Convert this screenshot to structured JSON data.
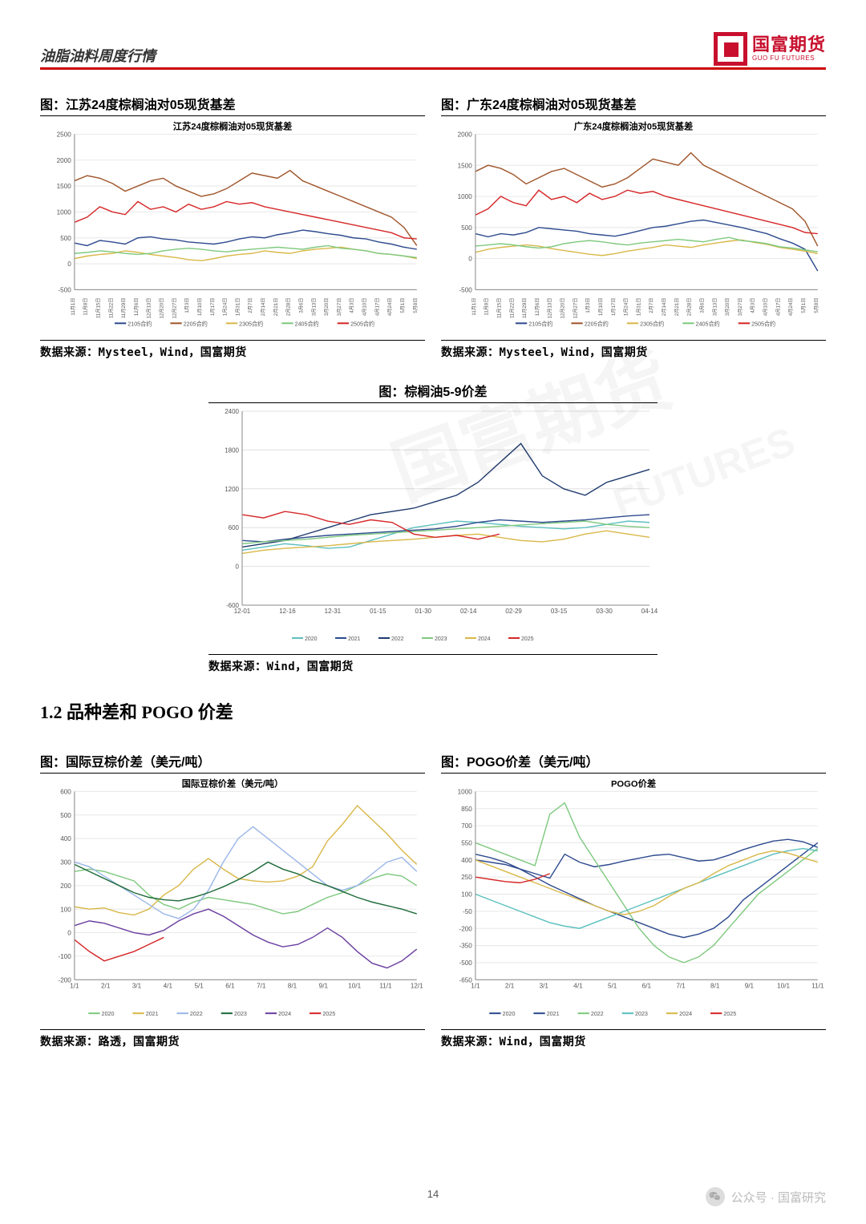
{
  "header": {
    "title": "油脂油料周度行情",
    "logo_cn": "国富期货",
    "logo_en": "GUO FU FUTURES"
  },
  "page_number": "14",
  "footer": {
    "label": "公众号 · 国富研究"
  },
  "watermarks": [
    "国富期货",
    "FUTURES"
  ],
  "section_heading": "1.2 品种差和 POGO 价差",
  "charts": {
    "jiangsu": {
      "title": "图：江苏24度棕榈油对05现货基差",
      "inner_title": "江苏24度棕榈油对05现货基差",
      "source": "数据来源：Mysteel，Wind，国富期货",
      "type": "line",
      "ylim": [
        -500,
        2500
      ],
      "ytick_step": 500,
      "x_labels": [
        "11月1日",
        "11月8日",
        "11月15日",
        "11月22日",
        "11月29日",
        "12月6日",
        "12月13日",
        "12月20日",
        "12月27日",
        "1月3日",
        "1月10日",
        "1月17日",
        "1月24日",
        "1月31日",
        "2月7日",
        "2月14日",
        "2月21日",
        "2月28日",
        "3月6日",
        "3月13日",
        "3月20日",
        "3月27日",
        "4月3日",
        "4月10日",
        "4月17日",
        "4月24日",
        "5月1日",
        "5月8日"
      ],
      "legend": [
        "2105合约",
        "2205合约",
        "2305合约",
        "2405合约",
        "2505合约"
      ],
      "colors": [
        "#2e4b8f",
        "#a0562c",
        "#d9b84a",
        "#7fc97f",
        "#d62728"
      ],
      "grid_color": "#e8e8e8",
      "series": {
        "2105": [
          400,
          350,
          450,
          420,
          380,
          500,
          520,
          480,
          460,
          420,
          400,
          380,
          420,
          480,
          520,
          500,
          560,
          600,
          650,
          620,
          580,
          550,
          500,
          480,
          420,
          380,
          320,
          280
        ],
        "2205": [
          1600,
          1700,
          1650,
          1550,
          1400,
          1500,
          1600,
          1650,
          1500,
          1400,
          1300,
          1350,
          1450,
          1600,
          1750,
          1700,
          1650,
          1800,
          1600,
          1500,
          1400,
          1300,
          1200,
          1100,
          1000,
          900,
          700,
          350
        ],
        "2305": [
          100,
          150,
          180,
          200,
          250,
          220,
          180,
          150,
          120,
          80,
          60,
          100,
          150,
          180,
          200,
          250,
          220,
          200,
          250,
          280,
          300,
          320,
          280,
          250,
          200,
          180,
          150,
          100
        ],
        "2405": [
          200,
          220,
          250,
          230,
          200,
          180,
          200,
          250,
          280,
          300,
          280,
          250,
          230,
          260,
          280,
          300,
          320,
          300,
          280,
          320,
          350,
          300,
          280,
          250,
          200,
          180,
          150,
          120
        ],
        "2505": [
          800,
          900,
          1100,
          1000,
          950,
          1200,
          1050,
          1100,
          1000,
          1150,
          1050,
          1100,
          1200,
          1150,
          1180,
          1100,
          1050,
          1000,
          950,
          900,
          850,
          800,
          750,
          700,
          650,
          600,
          500,
          480
        ]
      }
    },
    "guangdong": {
      "title": "图：广东24度棕榈油对05现货基差",
      "inner_title": "广东24度棕榈油对05现货基差",
      "source": "数据来源：Mysteel，Wind，国富期货",
      "type": "line",
      "ylim": [
        -500,
        2000
      ],
      "ytick_step": 500,
      "x_labels": [
        "11月1日",
        "11月8日",
        "11月15日",
        "11月22日",
        "11月29日",
        "12月6日",
        "12月13日",
        "12月20日",
        "12月27日",
        "1月3日",
        "1月10日",
        "1月17日",
        "1月24日",
        "1月31日",
        "2月7日",
        "2月14日",
        "2月21日",
        "2月28日",
        "3月6日",
        "3月13日",
        "3月20日",
        "3月27日",
        "4月3日",
        "4月10日",
        "4月17日",
        "4月24日",
        "5月1日",
        "5月8日"
      ],
      "legend": [
        "2105合约",
        "2205合约",
        "2305合约",
        "2405合约",
        "2505合约"
      ],
      "colors": [
        "#2e4b8f",
        "#a0562c",
        "#d9b84a",
        "#7fc97f",
        "#d62728"
      ],
      "grid_color": "#e8e8e8",
      "series": {
        "2105": [
          400,
          350,
          400,
          380,
          420,
          500,
          480,
          460,
          440,
          400,
          380,
          360,
          400,
          450,
          500,
          520,
          560,
          600,
          620,
          580,
          540,
          500,
          450,
          400,
          320,
          250,
          150,
          -200
        ],
        "2205": [
          1400,
          1500,
          1450,
          1350,
          1200,
          1300,
          1400,
          1450,
          1350,
          1250,
          1150,
          1200,
          1300,
          1450,
          1600,
          1550,
          1500,
          1700,
          1500,
          1400,
          1300,
          1200,
          1100,
          1000,
          900,
          800,
          600,
          200
        ],
        "2305": [
          100,
          150,
          180,
          200,
          220,
          200,
          160,
          130,
          100,
          70,
          50,
          80,
          120,
          150,
          180,
          220,
          200,
          180,
          220,
          250,
          280,
          300,
          260,
          230,
          180,
          150,
          120,
          80
        ],
        "2405": [
          200,
          220,
          240,
          220,
          190,
          170,
          190,
          240,
          270,
          290,
          270,
          240,
          220,
          250,
          270,
          290,
          310,
          290,
          270,
          310,
          340,
          290,
          270,
          240,
          190,
          170,
          140,
          110
        ],
        "2505": [
          700,
          800,
          1000,
          900,
          850,
          1100,
          950,
          1000,
          900,
          1050,
          950,
          1000,
          1100,
          1050,
          1080,
          1000,
          950,
          900,
          850,
          800,
          750,
          700,
          650,
          600,
          550,
          500,
          420,
          400
        ]
      }
    },
    "palm59": {
      "title": "图：棕榈油5-9价差",
      "source": "数据来源：Wind，国富期货",
      "type": "line",
      "ylim": [
        -600,
        2400
      ],
      "ytick_step": 600,
      "x_labels": [
        "12-01",
        "12-16",
        "12-31",
        "01-15",
        "01-30",
        "02-14",
        "02-29",
        "03-15",
        "03-30",
        "04-14"
      ],
      "legend": [
        "2020",
        "2021",
        "2022",
        "2023",
        "2024",
        "2025"
      ],
      "colors": [
        "#5bc0be",
        "#2e4b8f",
        "#1f3a6e",
        "#7fc97f",
        "#d9b84a",
        "#d62728"
      ],
      "grid_color": "#e0e0e0",
      "series": {
        "2020": [
          250,
          300,
          350,
          320,
          280,
          300,
          400,
          500,
          600,
          650,
          700,
          680,
          650,
          620,
          600,
          580,
          600,
          650,
          700,
          680
        ],
        "2021": [
          400,
          380,
          420,
          450,
          480,
          500,
          520,
          540,
          560,
          580,
          620,
          680,
          720,
          700,
          680,
          700,
          720,
          750,
          780,
          800
        ],
        "2022": [
          300,
          350,
          400,
          500,
          600,
          700,
          800,
          850,
          900,
          1000,
          1100,
          1300,
          1600,
          1900,
          1400,
          1200,
          1100,
          1300,
          1400,
          1500
        ],
        "2023": [
          350,
          380,
          400,
          420,
          450,
          480,
          500,
          520,
          540,
          560,
          580,
          600,
          620,
          640,
          660,
          680,
          700,
          650,
          620,
          600
        ],
        "2024": [
          200,
          250,
          280,
          300,
          320,
          350,
          380,
          400,
          420,
          450,
          480,
          500,
          450,
          400,
          380,
          420,
          500,
          550,
          500,
          450
        ],
        "2025": [
          800,
          750,
          850,
          800,
          700,
          650,
          720,
          680,
          500,
          450,
          480,
          420,
          500
        ]
      }
    },
    "intl_spread": {
      "title": "图：国际豆棕价差（美元/吨）",
      "inner_title": "国际豆棕价差（美元/吨）",
      "source": "数据来源：路透，国富期货",
      "type": "line",
      "ylim": [
        -200,
        600
      ],
      "ytick_step": 100,
      "x_labels": [
        "1/1",
        "2/1",
        "3/1",
        "4/1",
        "5/1",
        "6/1",
        "7/1",
        "8/1",
        "9/1",
        "10/1",
        "11/1",
        "12/1"
      ],
      "legend": [
        "2020",
        "2021",
        "2022",
        "2023",
        "2024",
        "2025"
      ],
      "colors": [
        "#7fc97f",
        "#d9b84a",
        "#9bb7e8",
        "#1f6b3a",
        "#6b3fa0",
        "#d62728"
      ],
      "grid_color": "#e8e8e8",
      "series": {
        "2020": [
          260,
          270,
          260,
          240,
          220,
          160,
          120,
          100,
          130,
          150,
          140,
          130,
          120,
          100,
          80,
          90,
          120,
          150,
          170,
          200,
          230,
          250,
          240,
          200
        ],
        "2021": [
          110,
          100,
          105,
          85,
          75,
          100,
          160,
          200,
          270,
          315,
          270,
          230,
          220,
          215,
          220,
          240,
          280,
          390,
          460,
          540,
          480,
          420,
          350,
          290
        ],
        "2022": [
          300,
          280,
          240,
          200,
          160,
          120,
          80,
          60,
          100,
          180,
          300,
          400,
          450,
          400,
          350,
          300,
          250,
          200,
          180,
          200,
          250,
          300,
          320,
          260
        ],
        "2023": [
          290,
          260,
          230,
          200,
          170,
          150,
          140,
          135,
          150,
          170,
          195,
          225,
          260,
          300,
          270,
          250,
          220,
          200,
          175,
          150,
          130,
          115,
          100,
          80
        ],
        "2024": [
          30,
          50,
          40,
          20,
          0,
          -10,
          10,
          50,
          80,
          100,
          70,
          30,
          -10,
          -40,
          -60,
          -50,
          -20,
          20,
          -20,
          -80,
          -130,
          -150,
          -120,
          -70
        ],
        "2025": [
          -30,
          -80,
          -120,
          -100,
          -80,
          -50,
          -20
        ]
      }
    },
    "pogo": {
      "title": "图：POGO价差（美元/吨）",
      "inner_title": "POGO价差",
      "source": "数据来源：Wind，国富期货",
      "type": "line",
      "ylim": [
        -650,
        1000
      ],
      "ytick_step": 150,
      "x_labels": [
        "1/1",
        "2/1",
        "3/1",
        "4/1",
        "5/1",
        "6/1",
        "7/1",
        "8/1",
        "9/1",
        "10/1",
        "11/1"
      ],
      "legend": [
        "2020",
        "2021",
        "2022",
        "2023",
        "2024",
        "2025"
      ],
      "colors": [
        "#2e4b8f",
        "#2e4b8f",
        "#7fc97f",
        "#5bc0be",
        "#d9b84a",
        "#d62728"
      ],
      "grid_color": "#e8e8e8",
      "series": {
        "2020": [
          400,
          380,
          360,
          320,
          280,
          240,
          450,
          380,
          340,
          360,
          390,
          415,
          440,
          450,
          420,
          390,
          400,
          440,
          490,
          530,
          565,
          580,
          560,
          510
        ],
        "2021": [
          450,
          420,
          380,
          320,
          250,
          180,
          120,
          60,
          0,
          -50,
          -100,
          -150,
          -200,
          -250,
          -280,
          -250,
          -200,
          -100,
          50,
          150,
          250,
          350,
          450,
          550
        ],
        "2022": [
          550,
          500,
          450,
          400,
          350,
          800,
          900,
          600,
          400,
          200,
          0,
          -200,
          -350,
          -450,
          -500,
          -450,
          -350,
          -200,
          -50,
          100,
          200,
          300,
          400,
          500
        ],
        "2023": [
          100,
          50,
          0,
          -50,
          -100,
          -150,
          -180,
          -200,
          -150,
          -100,
          -50,
          0,
          50,
          100,
          150,
          200,
          250,
          300,
          350,
          400,
          450,
          480,
          500,
          480
        ],
        "2024": [
          400,
          350,
          300,
          250,
          200,
          150,
          100,
          50,
          0,
          -50,
          -80,
          -50,
          0,
          80,
          150,
          200,
          280,
          350,
          400,
          450,
          480,
          460,
          420,
          380
        ],
        "2025": [
          250,
          230,
          210,
          200,
          230,
          280
        ]
      }
    }
  }
}
